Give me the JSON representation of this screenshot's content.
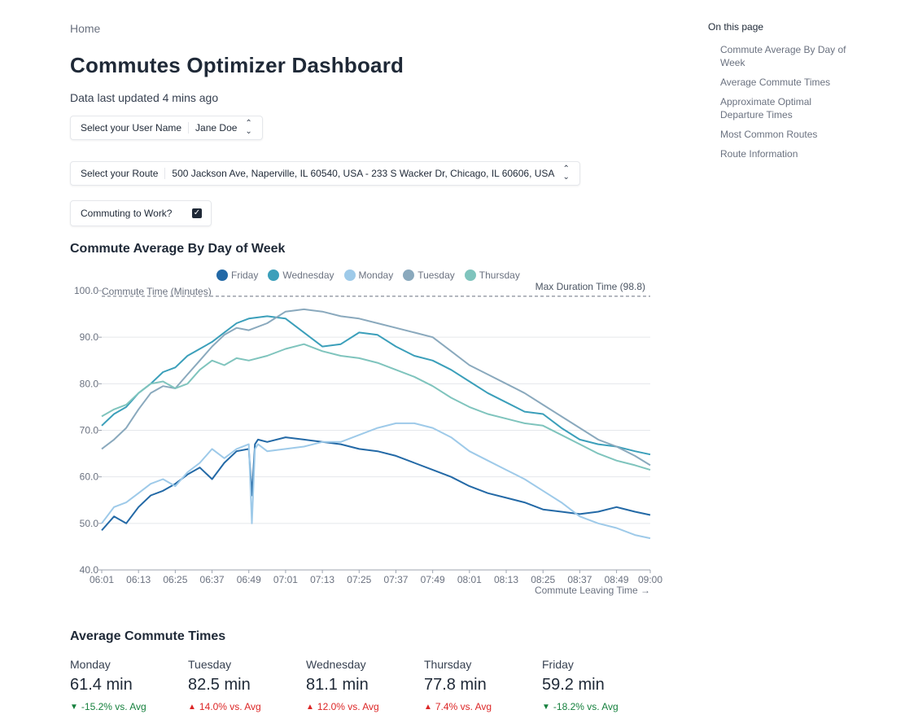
{
  "breadcrumb": "Home",
  "page_title": "Commutes Optimizer Dashboard",
  "last_updated": "Data last updated 4 mins ago",
  "user_select": {
    "label": "Select your User Name",
    "value": "Jane Doe"
  },
  "route_select": {
    "label": "Select your Route",
    "value": "500 Jackson Ave, Naperville, IL 60540, USA - 233 S Wacker Dr, Chicago, IL 60606, USA"
  },
  "commuting_checkbox": {
    "label": "Commuting to Work?",
    "checked": true
  },
  "sections": {
    "commute_average": "Commute Average By Day of Week",
    "average_times": "Average Commute Times"
  },
  "toc": {
    "title": "On this page",
    "items": [
      "Commute Average By Day of Week",
      "Average Commute Times",
      "Approximate Optimal Departure Times",
      "Most Common Routes",
      "Route Information"
    ]
  },
  "chart_data": {
    "type": "line",
    "xlabel": "Commute Leaving Time →",
    "ylabel": "Commute Time (Minutes)",
    "ylim": [
      40,
      100
    ],
    "xlim": [
      "06:01",
      "09:00"
    ],
    "yticks": [
      "40.0",
      "50.0",
      "60.0",
      "70.0",
      "80.0",
      "90.0",
      "100.0"
    ],
    "xticks": [
      "06:01",
      "06:13",
      "06:25",
      "06:37",
      "06:49",
      "07:01",
      "07:13",
      "07:25",
      "07:37",
      "07:49",
      "08:01",
      "08:13",
      "08:25",
      "08:37",
      "08:49",
      "09:00"
    ],
    "legend_position": "top",
    "max_line": {
      "label": "Max Duration Time (98.8)",
      "value": 98.8
    },
    "series": [
      {
        "name": "Friday",
        "color": "#2369a6",
        "x": [
          "06:01",
          "06:05",
          "06:09",
          "06:13",
          "06:17",
          "06:21",
          "06:25",
          "06:29",
          "06:33",
          "06:37",
          "06:41",
          "06:45",
          "06:49",
          "06:50",
          "06:51",
          "06:52",
          "06:55",
          "07:01",
          "07:07",
          "07:13",
          "07:19",
          "07:25",
          "07:31",
          "07:37",
          "07:43",
          "07:49",
          "07:55",
          "08:01",
          "08:07",
          "08:13",
          "08:19",
          "08:25",
          "08:31",
          "08:37",
          "08:43",
          "08:49",
          "08:55",
          "09:00"
        ],
        "values": [
          48.5,
          51.5,
          50.0,
          53.5,
          56.0,
          57.0,
          58.5,
          60.5,
          62.0,
          59.5,
          63.0,
          65.5,
          66.0,
          56.0,
          67.0,
          68.0,
          67.5,
          68.5,
          68.0,
          67.5,
          67.0,
          66.0,
          65.5,
          64.5,
          63.0,
          61.5,
          60.0,
          58.0,
          56.5,
          55.5,
          54.5,
          53.0,
          52.5,
          52.0,
          52.5,
          53.5,
          52.5,
          51.8
        ]
      },
      {
        "name": "Wednesday",
        "color": "#3b9fba",
        "x": [
          "06:01",
          "06:05",
          "06:09",
          "06:13",
          "06:17",
          "06:21",
          "06:25",
          "06:29",
          "06:33",
          "06:37",
          "06:41",
          "06:45",
          "06:49",
          "06:55",
          "07:01",
          "07:07",
          "07:13",
          "07:19",
          "07:25",
          "07:31",
          "07:37",
          "07:43",
          "07:49",
          "07:55",
          "08:01",
          "08:07",
          "08:13",
          "08:19",
          "08:25",
          "08:31",
          "08:37",
          "08:43",
          "08:49",
          "08:55",
          "09:00"
        ],
        "values": [
          71.0,
          73.5,
          75.0,
          78.0,
          80.0,
          82.5,
          83.5,
          86.0,
          87.5,
          89.0,
          91.0,
          93.0,
          94.0,
          94.5,
          94.0,
          91.0,
          88.0,
          88.5,
          91.0,
          90.5,
          88.0,
          86.0,
          85.0,
          83.0,
          80.5,
          78.0,
          76.0,
          74.0,
          73.5,
          70.5,
          68.0,
          67.0,
          66.5,
          65.5,
          64.8
        ]
      },
      {
        "name": "Monday",
        "color": "#9ecae9",
        "x": [
          "06:01",
          "06:05",
          "06:09",
          "06:13",
          "06:17",
          "06:21",
          "06:25",
          "06:29",
          "06:33",
          "06:37",
          "06:41",
          "06:45",
          "06:49",
          "06:50",
          "06:51",
          "06:52",
          "06:55",
          "07:01",
          "07:07",
          "07:13",
          "07:19",
          "07:25",
          "07:31",
          "07:37",
          "07:43",
          "07:49",
          "07:55",
          "08:01",
          "08:07",
          "08:13",
          "08:19",
          "08:25",
          "08:31",
          "08:37",
          "08:43",
          "08:49",
          "08:55",
          "09:00"
        ],
        "values": [
          50.0,
          53.5,
          54.5,
          56.5,
          58.5,
          59.5,
          58.0,
          61.0,
          63.0,
          66.0,
          64.0,
          66.0,
          67.0,
          50.0,
          66.0,
          67.0,
          65.5,
          66.0,
          66.5,
          67.5,
          67.5,
          69.0,
          70.5,
          71.5,
          71.5,
          70.5,
          68.5,
          65.5,
          63.5,
          61.5,
          59.5,
          57.0,
          54.5,
          51.5,
          50.0,
          49.0,
          47.5,
          46.8
        ]
      },
      {
        "name": "Tuesday",
        "color": "#8aa9bd",
        "x": [
          "06:01",
          "06:05",
          "06:09",
          "06:13",
          "06:17",
          "06:21",
          "06:25",
          "06:29",
          "06:33",
          "06:37",
          "06:41",
          "06:45",
          "06:49",
          "06:55",
          "07:01",
          "07:07",
          "07:13",
          "07:19",
          "07:25",
          "07:31",
          "07:37",
          "07:43",
          "07:49",
          "07:55",
          "08:01",
          "08:07",
          "08:13",
          "08:19",
          "08:25",
          "08:31",
          "08:37",
          "08:43",
          "08:49",
          "08:55",
          "09:00"
        ],
        "values": [
          66.0,
          68.0,
          70.5,
          74.5,
          78.0,
          79.5,
          79.0,
          82.0,
          85.0,
          88.0,
          90.5,
          92.0,
          91.5,
          93.0,
          95.5,
          96.0,
          95.5,
          94.5,
          94.0,
          93.0,
          92.0,
          91.0,
          90.0,
          87.0,
          84.0,
          82.0,
          80.0,
          78.0,
          75.5,
          73.0,
          70.5,
          68.0,
          66.5,
          64.5,
          62.5
        ]
      },
      {
        "name": "Thursday",
        "color": "#7fc4bd",
        "x": [
          "06:01",
          "06:05",
          "06:09",
          "06:13",
          "06:17",
          "06:21",
          "06:25",
          "06:29",
          "06:33",
          "06:37",
          "06:41",
          "06:45",
          "06:49",
          "06:55",
          "07:01",
          "07:07",
          "07:13",
          "07:19",
          "07:25",
          "07:31",
          "07:37",
          "07:43",
          "07:49",
          "07:55",
          "08:01",
          "08:07",
          "08:13",
          "08:19",
          "08:25",
          "08:31",
          "08:37",
          "08:43",
          "08:49",
          "08:55",
          "09:00"
        ],
        "values": [
          73.0,
          74.5,
          75.5,
          78.0,
          80.0,
          80.5,
          79.0,
          80.0,
          83.0,
          85.0,
          84.0,
          85.5,
          85.0,
          86.0,
          87.5,
          88.5,
          87.0,
          86.0,
          85.5,
          84.5,
          83.0,
          81.5,
          79.5,
          77.0,
          75.0,
          73.5,
          72.5,
          71.5,
          71.0,
          69.0,
          67.0,
          65.0,
          63.5,
          62.5,
          61.5
        ]
      }
    ]
  },
  "average_stats": [
    {
      "day": "Monday",
      "value": "61.4 min",
      "delta": "-15.2% vs. Avg",
      "direction": "down"
    },
    {
      "day": "Tuesday",
      "value": "82.5 min",
      "delta": "14.0% vs. Avg",
      "direction": "up"
    },
    {
      "day": "Wednesday",
      "value": "81.1 min",
      "delta": "12.0% vs. Avg",
      "direction": "up"
    },
    {
      "day": "Thursday",
      "value": "77.8 min",
      "delta": "7.4% vs. Avg",
      "direction": "up"
    },
    {
      "day": "Friday",
      "value": "59.2 min",
      "delta": "-18.2% vs. Avg",
      "direction": "down"
    }
  ],
  "icons": {
    "select_chevron": "chevron-up-down-icon",
    "checkbox": "checkmark-icon",
    "arrow_down": "triangle-down-icon",
    "arrow_up": "triangle-up-icon"
  }
}
